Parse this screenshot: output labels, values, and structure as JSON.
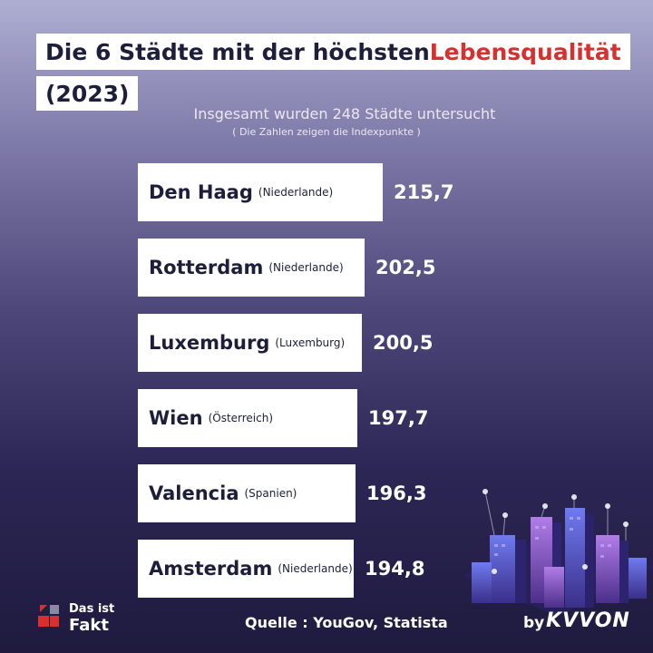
{
  "header": {
    "title_part1": "Die 6 Städte mit der höchsten ",
    "title_highlight": "Lebensqualität",
    "title_line2": "(2023)",
    "highlight_color": "#d9302f"
  },
  "subtitle": "Insgesamt wurden 248 Städte untersucht",
  "note": "( Die Zahlen zeigen die Indexpunkte )",
  "chart_data": {
    "type": "bar",
    "orientation": "horizontal",
    "categories": [
      "Den Haag",
      "Rotterdam",
      "Luxemburg",
      "Wien",
      "Valencia",
      "Amsterdam"
    ],
    "countries": [
      "(Niederlande)",
      "(Niederlande)",
      "(Luxemburg)",
      "(Österreich)",
      "(Spanien)",
      "(Niederlande)"
    ],
    "values": [
      215.7,
      202.5,
      200.5,
      197.7,
      196.3,
      194.8
    ],
    "value_labels": [
      "215,7",
      "202,5",
      "200,5",
      "197,7",
      "196,3",
      "194,8"
    ],
    "bar_color": "#ffffff"
  },
  "footer": {
    "logo_line1": "Das ist",
    "logo_line2": "Fakt",
    "source": "Quelle : YouGov, Statista",
    "brand_by": "by",
    "brand_name": "KVVON"
  }
}
